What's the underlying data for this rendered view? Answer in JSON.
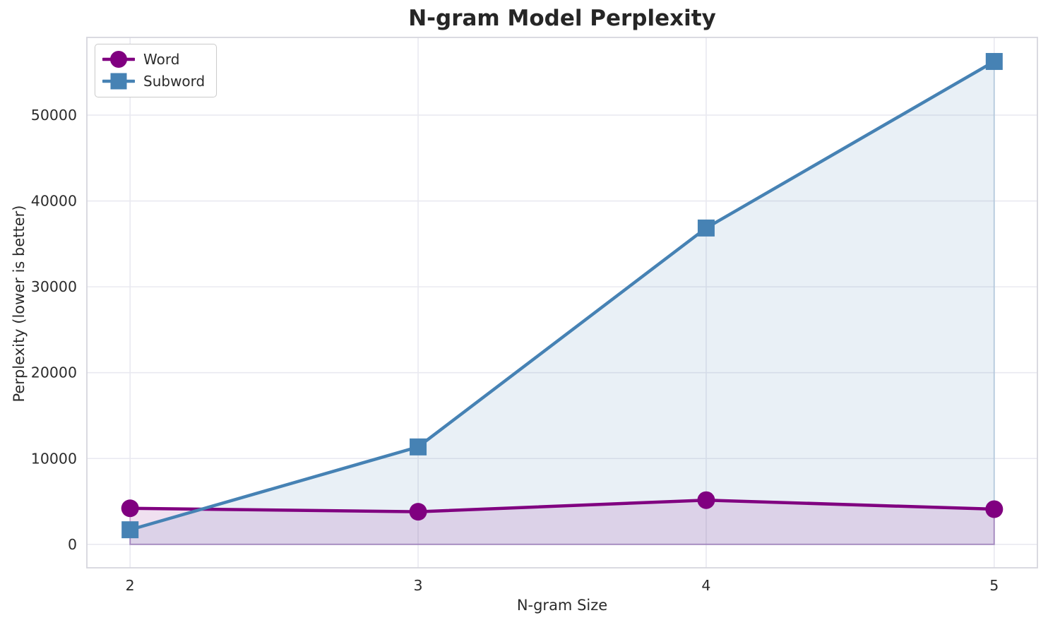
{
  "chart": {
    "title": "N-gram Model Perplexity",
    "xlabel": "N-gram Size",
    "ylabel": "Perplexity (lower is better)"
  },
  "legend": {
    "position": "upper left",
    "items": [
      {
        "label": "Word",
        "marker": "circle",
        "color": "#800080"
      },
      {
        "label": "Subword",
        "marker": "square",
        "color": "#4682B4"
      }
    ]
  },
  "chart_data": {
    "type": "line",
    "title": "N-gram Model Perplexity",
    "xlabel": "N-gram Size",
    "ylabel": "Perplexity (lower is better)",
    "x": [
      2,
      3,
      4,
      5
    ],
    "series": [
      {
        "name": "Word",
        "marker": "circle",
        "color": "#800080",
        "values": [
          4200,
          3800,
          5150,
          4100
        ]
      },
      {
        "name": "Subword",
        "marker": "square",
        "color": "#4682B4",
        "values": [
          1700,
          11350,
          36850,
          56250
        ]
      }
    ],
    "xticks": [
      2,
      3,
      4,
      5
    ],
    "yticks": [
      0,
      10000,
      20000,
      30000,
      40000,
      50000
    ],
    "xlim": [
      1.85,
      5.15
    ],
    "ylim": [
      -2730,
      59050
    ],
    "grid": true,
    "area_fill_to_zero": true,
    "legend_position": "upper left",
    "style": {
      "grid_color": "#e9e9f0",
      "spine_color": "#d6d6de",
      "text_color": "#2b2b2b",
      "fill_opacity": 0.12,
      "fill_edge_opacity": 0.25,
      "line_width": 4.5,
      "background": "#ffffff"
    }
  }
}
